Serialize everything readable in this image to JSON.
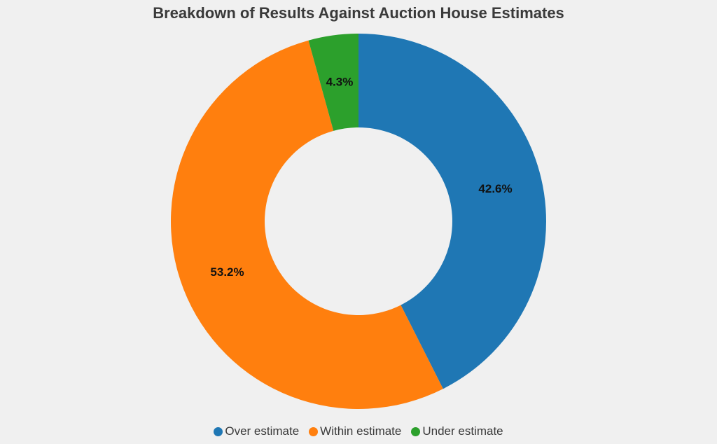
{
  "chart_data": {
    "type": "pie",
    "title": "Breakdown of Results Against Auction House Estimates",
    "hole": 0.5,
    "categories": [
      "Over estimate",
      "Within estimate",
      "Under estimate"
    ],
    "values": [
      42.6,
      53.2,
      4.3
    ],
    "value_labels": [
      "42.6%",
      "53.2%",
      "4.3%"
    ],
    "colors": [
      "#1f77b4",
      "#ff7f0e",
      "#2ca02c"
    ],
    "direction": "clockwise",
    "start": "top",
    "legend_position": "bottom"
  }
}
